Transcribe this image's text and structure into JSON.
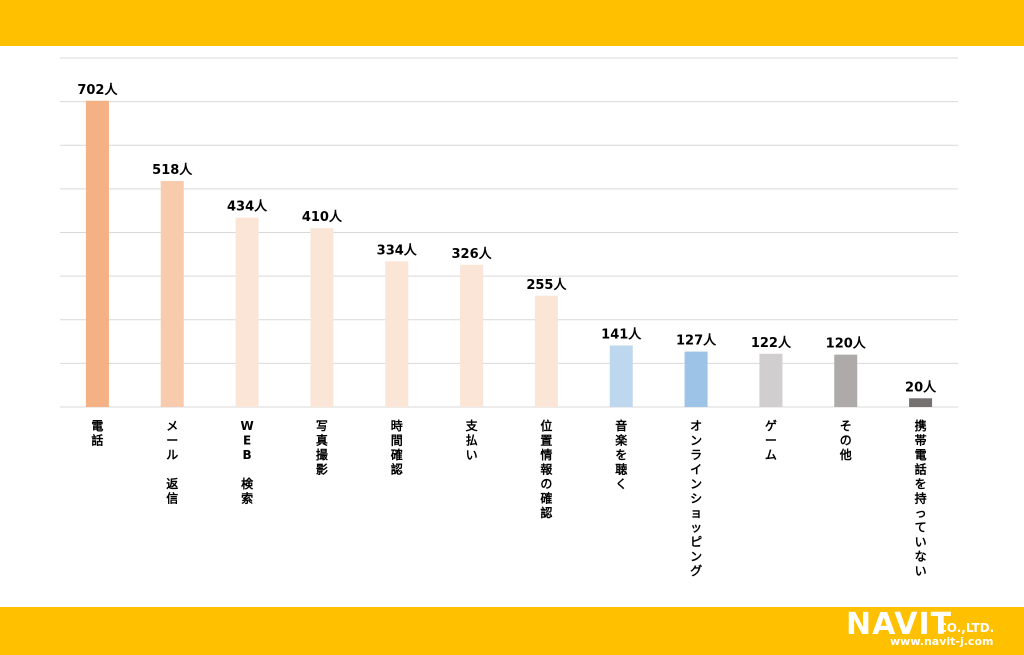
{
  "chart_data": {
    "type": "bar",
    "title": "",
    "xlabel": "",
    "ylabel": "",
    "unit": "人",
    "ylim": [
      0,
      800
    ],
    "grid": true,
    "categories": [
      "電話",
      "メール 返信",
      "WEB 検索",
      "写真撮影",
      "時間確認",
      "支払い",
      "位置情報の確認",
      "音楽を聴く",
      "オンラインショッピング",
      "ゲーム",
      "その他",
      "携帯電話を持っていない"
    ],
    "values": [
      702,
      518,
      434,
      410,
      334,
      326,
      255,
      141,
      127,
      122,
      120,
      20
    ],
    "value_labels": [
      "702人",
      "518人",
      "434人",
      "410人",
      "334人",
      "326人",
      "255人",
      "141人",
      "127人",
      "122人",
      "120人",
      "20人"
    ],
    "colors": [
      "#f4b183",
      "#f8cbad",
      "#fbe5d6",
      "#fbe5d6",
      "#fbe5d6",
      "#fbe5d6",
      "#fbe5d6",
      "#bdd7ee",
      "#9dc3e6",
      "#d0cece",
      "#aeaaaa",
      "#767171"
    ]
  },
  "footer": {
    "brand": "NAVIT",
    "company_suffix": "CO.,LTD.",
    "url": "www.navit-j.com"
  }
}
